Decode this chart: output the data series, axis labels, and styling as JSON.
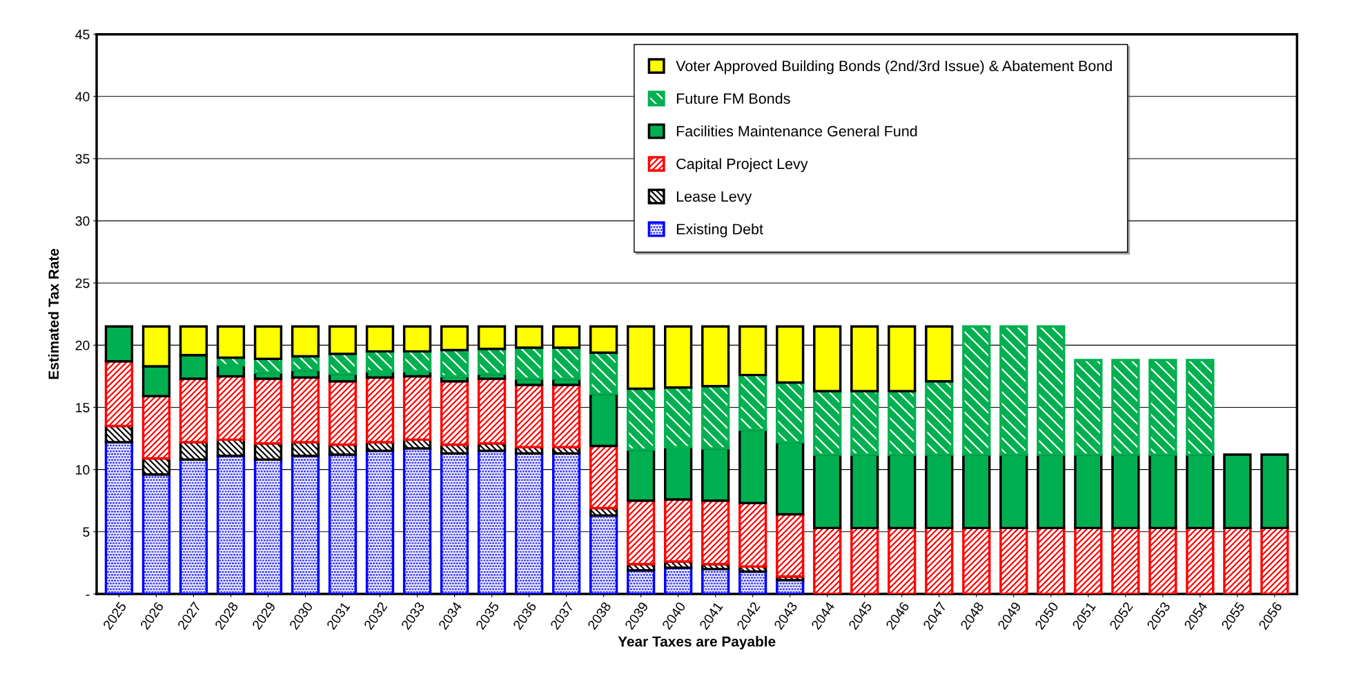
{
  "chart_data": {
    "type": "bar",
    "stacked": true,
    "xlabel": "Year Taxes are Payable",
    "ylabel": "Estimated Tax Rate",
    "categories": [
      "2025",
      "2026",
      "2027",
      "2028",
      "2029",
      "2030",
      "2031",
      "2032",
      "2033",
      "2034",
      "2035",
      "2036",
      "2037",
      "2038",
      "2039",
      "2040",
      "2041",
      "2042",
      "2043",
      "2044",
      "2045",
      "2046",
      "2047",
      "2048",
      "2049",
      "2050",
      "2051",
      "2052",
      "2053",
      "2054",
      "2055",
      "2056"
    ],
    "series": [
      {
        "name": "Existing Debt",
        "color": "#0000ff",
        "values": [
          12.2,
          9.6,
          10.8,
          11.1,
          10.8,
          11.1,
          11.2,
          11.5,
          11.7,
          11.3,
          11.5,
          11.3,
          11.3,
          6.3,
          1.9,
          2.1,
          2.0,
          1.8,
          1.1,
          null,
          null,
          null,
          null,
          null,
          null,
          null,
          null,
          null,
          null,
          null,
          null,
          null
        ]
      },
      {
        "name": "Lease Levy",
        "color": "#000000",
        "values": [
          1.3,
          1.3,
          1.4,
          1.3,
          1.3,
          1.1,
          0.8,
          0.7,
          0.7,
          0.7,
          0.6,
          0.5,
          0.5,
          0.6,
          0.5,
          0.5,
          0.4,
          0.4,
          0.3,
          null,
          null,
          null,
          null,
          null,
          null,
          null,
          null,
          null,
          null,
          null,
          null,
          null
        ]
      },
      {
        "name": "Capital Project Levy",
        "color": "#ff0000",
        "values": [
          5.2,
          5.0,
          5.1,
          5.1,
          5.2,
          5.2,
          5.1,
          5.2,
          5.1,
          5.1,
          5.2,
          5.0,
          5.0,
          5.0,
          5.1,
          5.0,
          5.1,
          5.1,
          5.0,
          5.3,
          5.3,
          5.3,
          5.3,
          5.3,
          5.3,
          5.3,
          5.3,
          5.3,
          5.3,
          5.3,
          5.3,
          5.3
        ]
      },
      {
        "name": "Facilities Maintenance General Fund",
        "color": "#00b050",
        "values": [
          2.8,
          2.4,
          1.9,
          0.9,
          0.5,
          0.6,
          0.6,
          0.5,
          0.4,
          0.4,
          0.4,
          0.5,
          0.5,
          4.2,
          4.1,
          4.2,
          4.2,
          5.9,
          5.8,
          5.9,
          5.9,
          5.9,
          5.9,
          5.9,
          5.9,
          5.9,
          5.9,
          5.9,
          5.9,
          5.9,
          5.9,
          5.9
        ]
      },
      {
        "name": "Future FM Bonds",
        "color": "#00b050",
        "values": [
          null,
          null,
          null,
          0.6,
          1.1,
          1.1,
          1.6,
          1.6,
          1.6,
          2.1,
          2.0,
          2.5,
          2.5,
          3.3,
          4.9,
          4.8,
          5.0,
          4.4,
          4.8,
          5.1,
          5.1,
          5.1,
          5.9,
          10.3,
          10.3,
          10.3,
          7.6,
          7.6,
          7.6,
          7.6,
          null,
          null
        ]
      },
      {
        "name": "Voter Approved Building Bonds (2nd/3rd Issue) & Abatement Bond",
        "color": "#ffff00",
        "values": [
          null,
          3.2,
          2.3,
          2.5,
          2.6,
          2.4,
          2.2,
          2.0,
          2.0,
          1.9,
          1.8,
          1.7,
          1.7,
          2.1,
          5.0,
          4.9,
          4.8,
          3.9,
          4.5,
          5.2,
          5.2,
          5.2,
          4.4,
          null,
          null,
          null,
          null,
          null,
          null,
          null,
          null,
          null
        ]
      }
    ],
    "ylim": [
      0,
      45
    ],
    "yticks": [
      {
        "value": 0,
        "label": "-"
      },
      5,
      10,
      15,
      20,
      25,
      30,
      35,
      40,
      45
    ],
    "grid": "y",
    "legend": "top right"
  }
}
